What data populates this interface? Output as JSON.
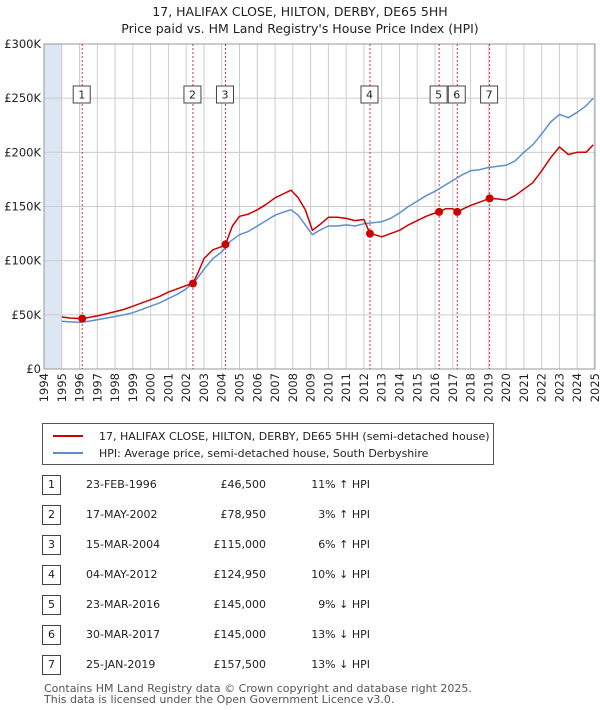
{
  "title": "17, HALIFAX CLOSE, HILTON, DERBY, DE65 5HH",
  "subtitle": "Price paid vs. HM Land Registry's House Price Index (HPI)",
  "colors": {
    "property": "#cc0000",
    "hpi": "#5b8fd0",
    "band": "#dde6f3",
    "grid": "#cccccc",
    "marker": "#cc0000"
  },
  "chart_data": {
    "type": "line",
    "xlim": [
      1994,
      2025
    ],
    "ylim": [
      0,
      300000
    ],
    "y_ticks": [
      0,
      50000,
      100000,
      150000,
      200000,
      250000,
      300000
    ],
    "y_tick_labels": [
      "£0",
      "£50K",
      "£100K",
      "£150K",
      "£200K",
      "£250K",
      "£300K"
    ],
    "x_ticks": [
      1994,
      1995,
      1996,
      1997,
      1998,
      1999,
      2000,
      2001,
      2002,
      2003,
      2004,
      2005,
      2006,
      2007,
      2008,
      2009,
      2010,
      2011,
      2012,
      2013,
      2014,
      2015,
      2016,
      2017,
      2018,
      2019,
      2020,
      2021,
      2022,
      2023,
      2024,
      2025
    ],
    "x_tick_labels": [
      "1994",
      "1995",
      "1996",
      "1997",
      "1998",
      "1999",
      "2000",
      "2001",
      "2002",
      "2003",
      "2004",
      "2005",
      "2006",
      "2007",
      "2008",
      "2009",
      "2010",
      "2011",
      "2012",
      "2013",
      "2014",
      "2015",
      "2016",
      "2017",
      "2018",
      "2019",
      "2020",
      "2021",
      "2022",
      "2023",
      "2024",
      "2025"
    ],
    "grid": true,
    "legend": "below-chart",
    "series": [
      {
        "name": "17, HALIFAX CLOSE, HILTON, DERBY, DE65 5HH (semi-detached house)",
        "x": [
          1995.0,
          1995.5,
          1996.15,
          1996.5,
          1997.0,
          1997.5,
          1998.0,
          1998.5,
          1999.0,
          1999.5,
          2000.0,
          2000.5,
          2001.0,
          2001.5,
          2002.0,
          2002.38,
          2002.7,
          2003.0,
          2003.5,
          2004.0,
          2004.21,
          2004.6,
          2005.0,
          2005.5,
          2006.0,
          2006.5,
          2007.0,
          2007.5,
          2007.9,
          2008.3,
          2008.7,
          2009.1,
          2009.5,
          2010.0,
          2010.5,
          2011.0,
          2011.5,
          2012.0,
          2012.34,
          2012.6,
          2013.0,
          2013.5,
          2014.0,
          2014.5,
          2015.0,
          2015.5,
          2016.0,
          2016.23,
          2016.6,
          2017.0,
          2017.25,
          2017.6,
          2018.0,
          2018.5,
          2019.07,
          2019.5,
          2020.0,
          2020.5,
          2021.0,
          2021.5,
          2022.0,
          2022.5,
          2023.0,
          2023.5,
          2024.0,
          2024.5,
          2024.9
        ],
        "values": [
          48000,
          47000,
          46500,
          47500,
          49000,
          51000,
          53000,
          55000,
          58000,
          61000,
          64000,
          67000,
          71000,
          74000,
          77000,
          78950,
          90000,
          102000,
          110000,
          113000,
          115000,
          132000,
          141000,
          143000,
          147000,
          152000,
          158000,
          162000,
          165000,
          158000,
          147000,
          128000,
          133000,
          140000,
          140000,
          139000,
          137000,
          138000,
          124950,
          124000,
          122000,
          125000,
          128000,
          133000,
          137000,
          141000,
          144000,
          145000,
          148000,
          148000,
          145000,
          148000,
          151000,
          154000,
          157500,
          157000,
          156000,
          160000,
          166000,
          172000,
          183000,
          195000,
          205000,
          198000,
          200000,
          200000,
          207000
        ]
      },
      {
        "name": "HPI: Average price, semi-detached house, South Derbyshire",
        "x": [
          1995.0,
          1995.5,
          1996.0,
          1996.5,
          1997.0,
          1997.5,
          1998.0,
          1998.5,
          1999.0,
          1999.5,
          2000.0,
          2000.5,
          2001.0,
          2001.5,
          2002.0,
          2002.5,
          2003.0,
          2003.5,
          2004.0,
          2004.5,
          2005.0,
          2005.5,
          2006.0,
          2006.5,
          2007.0,
          2007.5,
          2007.9,
          2008.3,
          2008.7,
          2009.1,
          2009.5,
          2010.0,
          2010.5,
          2011.0,
          2011.5,
          2012.0,
          2012.5,
          2013.0,
          2013.5,
          2014.0,
          2014.5,
          2015.0,
          2015.5,
          2016.0,
          2016.5,
          2017.0,
          2017.5,
          2018.0,
          2018.5,
          2019.0,
          2019.5,
          2020.0,
          2020.5,
          2021.0,
          2021.5,
          2022.0,
          2022.5,
          2023.0,
          2023.5,
          2024.0,
          2024.5,
          2024.9
        ],
        "values": [
          44000,
          43500,
          43000,
          44000,
          45500,
          47000,
          48500,
          50000,
          52000,
          55000,
          58000,
          61000,
          65000,
          69000,
          74000,
          81000,
          92000,
          102000,
          108000,
          118000,
          124000,
          127000,
          132000,
          137000,
          142000,
          145000,
          147000,
          142000,
          133000,
          124000,
          128000,
          132000,
          132000,
          133000,
          132000,
          134000,
          135000,
          136000,
          139000,
          144000,
          150000,
          155000,
          160000,
          164000,
          169000,
          174000,
          179000,
          183000,
          184000,
          186000,
          187000,
          188000,
          192000,
          200000,
          207000,
          217000,
          228000,
          235000,
          232000,
          237000,
          243000,
          250000
        ]
      }
    ],
    "markers": [
      {
        "label": "1",
        "x": 1996.15,
        "y": 46500
      },
      {
        "label": "2",
        "x": 2002.38,
        "y": 78950
      },
      {
        "label": "3",
        "x": 2004.21,
        "y": 115000
      },
      {
        "label": "4",
        "x": 2012.34,
        "y": 124950
      },
      {
        "label": "5",
        "x": 2016.23,
        "y": 145000
      },
      {
        "label": "6",
        "x": 2017.25,
        "y": 145000
      },
      {
        "label": "7",
        "x": 2019.07,
        "y": 157500
      }
    ]
  },
  "legend_items": [
    {
      "label": "17, HALIFAX CLOSE, HILTON, DERBY, DE65 5HH (semi-detached house)"
    },
    {
      "label": "HPI: Average price, semi-detached house, South Derbyshire"
    }
  ],
  "transactions": [
    {
      "num": "1",
      "date": "23-FEB-1996",
      "price": "£46,500",
      "hpi": "11% ↑ HPI"
    },
    {
      "num": "2",
      "date": "17-MAY-2002",
      "price": "£78,950",
      "hpi": "3% ↑ HPI"
    },
    {
      "num": "3",
      "date": "15-MAR-2004",
      "price": "£115,000",
      "hpi": "6% ↑ HPI"
    },
    {
      "num": "4",
      "date": "04-MAY-2012",
      "price": "£124,950",
      "hpi": "10% ↓ HPI"
    },
    {
      "num": "5",
      "date": "23-MAR-2016",
      "price": "£145,000",
      "hpi": "9% ↓ HPI"
    },
    {
      "num": "6",
      "date": "30-MAR-2017",
      "price": "£145,000",
      "hpi": "13% ↓ HPI"
    },
    {
      "num": "7",
      "date": "25-JAN-2019",
      "price": "£157,500",
      "hpi": "13% ↓ HPI"
    }
  ],
  "footer": {
    "line1": "Contains HM Land Registry data © Crown copyright and database right 2025.",
    "line2": "This data is licensed under the Open Government Licence v3.0."
  }
}
